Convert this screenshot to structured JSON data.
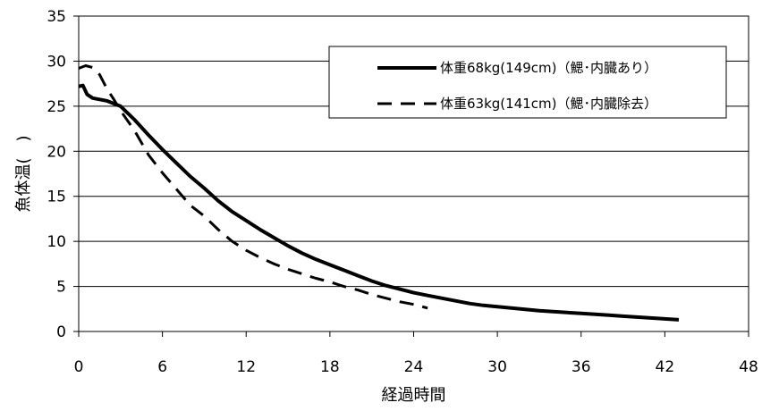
{
  "chart_data": {
    "type": "line",
    "xlabel": "経過時間",
    "ylabel": "魚体温(　)",
    "xlim": [
      0,
      48
    ],
    "ylim": [
      0,
      35
    ],
    "xticks": [
      "0",
      "6",
      "12",
      "18",
      "24",
      "30",
      "36",
      "42",
      "48"
    ],
    "yticks": [
      "0",
      "5",
      "10",
      "15",
      "20",
      "25",
      "30",
      "35"
    ],
    "grid": "horizontal",
    "legend_position": "top-right",
    "series": [
      {
        "name": "体重68kg(149cm)（鰓･内臓あり）",
        "style": "solid",
        "color": "#000000",
        "points": [
          [
            0,
            27.2
          ],
          [
            0.3,
            27.3
          ],
          [
            0.6,
            26.3
          ],
          [
            1,
            25.9
          ],
          [
            2,
            25.6
          ],
          [
            3,
            25.0
          ],
          [
            4,
            23.5
          ],
          [
            5,
            21.8
          ],
          [
            6,
            20.2
          ],
          [
            7,
            18.7
          ],
          [
            8,
            17.2
          ],
          [
            9,
            15.9
          ],
          [
            10,
            14.5
          ],
          [
            11,
            13.3
          ],
          [
            12,
            12.3
          ],
          [
            13,
            11.3
          ],
          [
            14,
            10.4
          ],
          [
            15,
            9.5
          ],
          [
            16,
            8.7
          ],
          [
            17,
            8.0
          ],
          [
            18,
            7.4
          ],
          [
            19,
            6.8
          ],
          [
            20,
            6.2
          ],
          [
            21,
            5.6
          ],
          [
            22,
            5.1
          ],
          [
            23,
            4.7
          ],
          [
            24,
            4.3
          ],
          [
            25,
            4.0
          ],
          [
            26,
            3.7
          ],
          [
            27,
            3.4
          ],
          [
            28,
            3.1
          ],
          [
            29,
            2.9
          ],
          [
            30,
            2.75
          ],
          [
            31,
            2.6
          ],
          [
            32,
            2.45
          ],
          [
            33,
            2.3
          ],
          [
            34,
            2.2
          ],
          [
            35,
            2.1
          ],
          [
            36,
            2.0
          ],
          [
            37,
            1.9
          ],
          [
            38,
            1.8
          ],
          [
            39,
            1.7
          ],
          [
            40,
            1.6
          ],
          [
            41,
            1.5
          ],
          [
            42,
            1.4
          ],
          [
            43,
            1.3
          ]
        ]
      },
      {
        "name": "体重63kg(141cm)（鰓･内臓除去）",
        "style": "dashed",
        "color": "#000000",
        "points": [
          [
            0,
            29.2
          ],
          [
            0.5,
            29.5
          ],
          [
            1,
            29.3
          ],
          [
            1.5,
            28.5
          ],
          [
            2,
            27.0
          ],
          [
            2.5,
            25.8
          ],
          [
            3,
            24.5
          ],
          [
            4,
            22.3
          ],
          [
            5,
            19.6
          ],
          [
            6,
            17.6
          ],
          [
            7,
            15.8
          ],
          [
            8,
            14.0
          ],
          [
            9,
            12.8
          ],
          [
            10,
            11.3
          ],
          [
            11,
            10.0
          ],
          [
            12,
            9.0
          ],
          [
            13,
            8.2
          ],
          [
            14,
            7.5
          ],
          [
            15,
            6.9
          ],
          [
            16,
            6.4
          ],
          [
            17,
            5.9
          ],
          [
            18,
            5.5
          ],
          [
            19,
            5.0
          ],
          [
            20,
            4.6
          ],
          [
            21,
            4.1
          ],
          [
            22,
            3.7
          ],
          [
            23,
            3.3
          ],
          [
            24,
            3.0
          ],
          [
            25,
            2.6
          ]
        ]
      }
    ]
  }
}
